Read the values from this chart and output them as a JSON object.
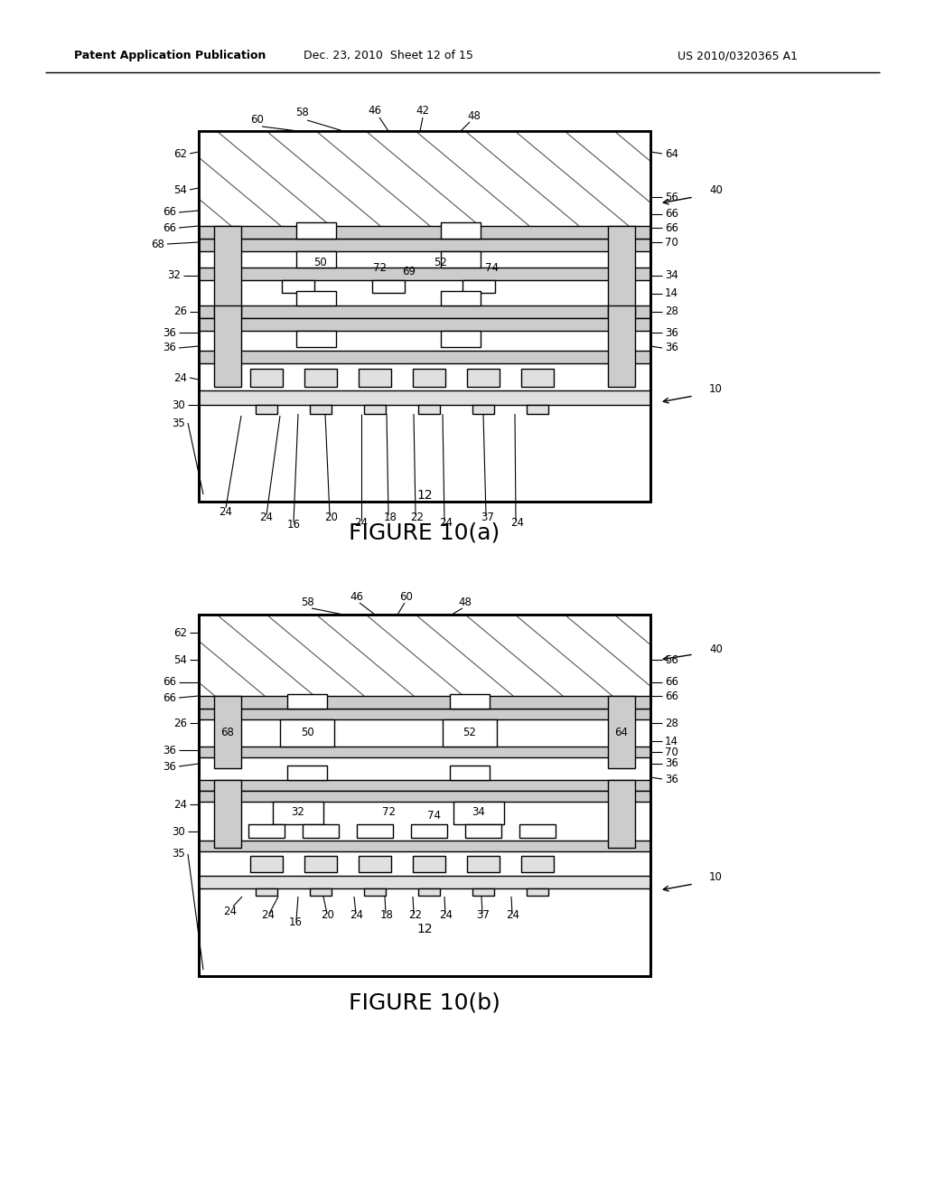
{
  "title_left": "Patent Application Publication",
  "title_mid": "Dec. 23, 2010  Sheet 12 of 15",
  "title_right": "US 2010/0320365 A1",
  "fig_a_title": "FIGURE 10(a)",
  "fig_b_title": "FIGURE 10(b)",
  "bg_color": "#ffffff",
  "lc": "#000000"
}
